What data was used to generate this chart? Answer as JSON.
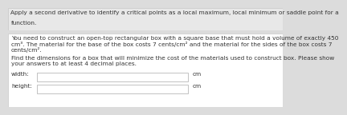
{
  "bg_color": "#dcdcdc",
  "header_bg": "#e8e8e8",
  "white_bg": "#ffffff",
  "header_text_line1": "Apply a second derivative to identify a critical points as a local maximum, local minimum or saddle point for a",
  "header_text_line2": "function.",
  "body_text_line1": "You need to construct an open-top rectangular box with a square base that must hold a volume of exactly 450",
  "body_text_line2": "cm³. The material for the base of the box costs 7 cents/cm² and the material for the sides of the box costs 7",
  "body_text_line3": "cents/cm².",
  "body_text_line4": "Find the dimensions for a box that will minimize the cost of the materials used to construct box. Please show",
  "body_text_line5": "your answers to at least 4 decimal places.",
  "label_width": "width:",
  "label_height": "height:",
  "unit": "cm",
  "font_size": 5.3,
  "input_box_color": "#ffffff",
  "input_box_edge": "#aaaaaa",
  "text_color": "#333333",
  "border_color": "#c8c8c8"
}
